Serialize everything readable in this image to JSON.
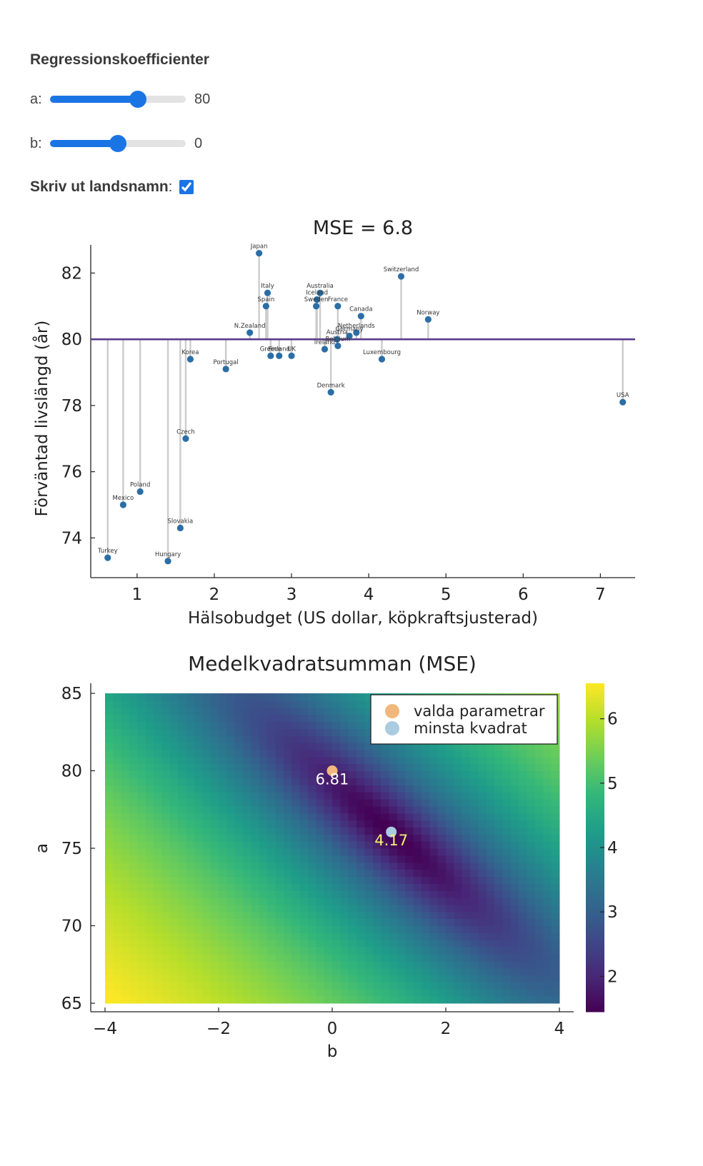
{
  "controls": {
    "title": "Regressionskoefficienter",
    "a_label": "a:",
    "a_value": "80",
    "a_min": 60,
    "a_max": 90,
    "b_label": "b:",
    "b_value": "0",
    "b_min": -4,
    "b_max": 4,
    "show_names_label": "Skriv ut landsnamn",
    "show_names_colon": ":",
    "show_names_checked": true
  },
  "chart_data": [
    {
      "type": "scatter",
      "title": "MSE = 6.8",
      "xlabel": "Hälsobudget (US dollar, köpkraftsjusterad)",
      "ylabel": "Förväntad livslängd (år)",
      "xlim": [
        0.4,
        7.45
      ],
      "ylim": [
        72.8,
        82.85
      ],
      "xticks": [
        1,
        2,
        3,
        4,
        5,
        6,
        7
      ],
      "yticks": [
        74,
        76,
        78,
        80,
        82
      ],
      "grid": false,
      "regression_line": {
        "a": 80,
        "b": 0
      },
      "point_color": "#2b6ea5",
      "line_color": "#5a3d8a",
      "residual_color": "#cccccc",
      "points": [
        {
          "name": "Japan",
          "x": 2.58,
          "y": 82.6
        },
        {
          "name": "Switzerland",
          "x": 4.42,
          "y": 81.9
        },
        {
          "name": "Italy",
          "x": 2.69,
          "y": 81.4
        },
        {
          "name": "Australia",
          "x": 3.37,
          "y": 81.4
        },
        {
          "name": "Iceland",
          "x": 3.33,
          "y": 81.2
        },
        {
          "name": "Spain",
          "x": 2.67,
          "y": 81.0
        },
        {
          "name": "Sweden",
          "x": 3.32,
          "y": 81.0
        },
        {
          "name": "France",
          "x": 3.6,
          "y": 81.0
        },
        {
          "name": "Canada",
          "x": 3.9,
          "y": 80.7
        },
        {
          "name": "Norway",
          "x": 4.77,
          "y": 80.6
        },
        {
          "name": "N.Zealand",
          "x": 2.46,
          "y": 80.2
        },
        {
          "name": "Netherlands",
          "x": 3.84,
          "y": 80.2
        },
        {
          "name": "Germany",
          "x": 3.75,
          "y": 80.1
        },
        {
          "name": "Austria",
          "x": 3.59,
          "y": 80.0
        },
        {
          "name": "Belgium",
          "x": 3.6,
          "y": 79.8
        },
        {
          "name": "Ireland",
          "x": 3.43,
          "y": 79.7
        },
        {
          "name": "Greece",
          "x": 2.73,
          "y": 79.5
        },
        {
          "name": "Finland",
          "x": 2.84,
          "y": 79.5
        },
        {
          "name": "UK",
          "x": 3.0,
          "y": 79.5
        },
        {
          "name": "Korea",
          "x": 1.69,
          "y": 79.4
        },
        {
          "name": "Luxembourg",
          "x": 4.17,
          "y": 79.4
        },
        {
          "name": "Portugal",
          "x": 2.15,
          "y": 79.1
        },
        {
          "name": "Denmark",
          "x": 3.51,
          "y": 78.4
        },
        {
          "name": "USA",
          "x": 7.29,
          "y": 78.1
        },
        {
          "name": "Czech",
          "x": 1.63,
          "y": 77.0
        },
        {
          "name": "Poland",
          "x": 1.04,
          "y": 75.4
        },
        {
          "name": "Mexico",
          "x": 0.82,
          "y": 75.0
        },
        {
          "name": "Slovakia",
          "x": 1.56,
          "y": 74.3
        },
        {
          "name": "Turkey",
          "x": 0.62,
          "y": 73.4
        },
        {
          "name": "Hungary",
          "x": 1.4,
          "y": 73.3
        }
      ]
    },
    {
      "type": "heatmap",
      "title": "Medelkvadratsumman (MSE)",
      "xlabel": "b",
      "ylabel": "a",
      "xlim": [
        -4,
        4
      ],
      "ylim": [
        65,
        85
      ],
      "xticks": [
        -4,
        -2,
        0,
        2,
        4
      ],
      "yticks": [
        65,
        70,
        75,
        80,
        85
      ],
      "colorbar": {
        "min": 1.45,
        "max": 6.55,
        "ticks": [
          2,
          3,
          4,
          5,
          6
        ],
        "colormap": "viridis"
      },
      "legend_position": "top-right",
      "markers": [
        {
          "name": "valda parametrar",
          "b": 0,
          "a": 80,
          "label": "6.81",
          "color": "#f0b87a",
          "label_color": "#ffffff"
        },
        {
          "name": "minsta kvadrat",
          "b": 1.04,
          "a": 76.05,
          "label": "4.17",
          "color": "#aacbe0",
          "label_color": "#f4f172"
        }
      ]
    }
  ]
}
